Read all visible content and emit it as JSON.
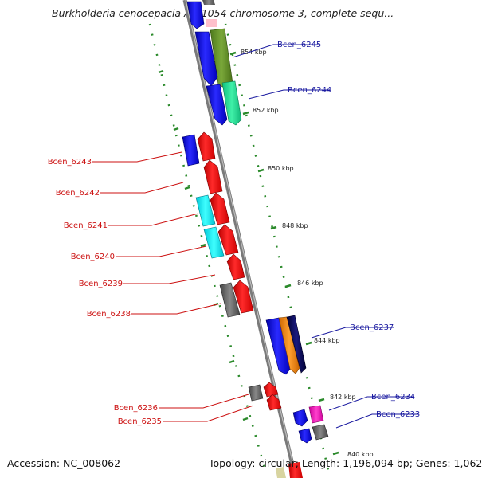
{
  "title": "Burkholderia cenocepacia AU 1054 chromosome 3, complete sequ...",
  "footer": {
    "accession": "Accession: NC_008062",
    "summary": "Topology: circular; Length: 1,196,094 bp; Genes: 1,062"
  },
  "colors": {
    "backbone": "#888888",
    "ticks": "#2b8a2b",
    "forward_label": "#1a1aa0",
    "reverse_label": "#cc1111"
  },
  "kbp_labels": [
    "854 kbp",
    "852 kbp",
    "850 kbp",
    "848 kbp",
    "846 kbp",
    "844 kbp",
    "842 kbp",
    "840 kbp"
  ],
  "gene_labels": {
    "forward": [
      "Bcen_6245",
      "Bcen_6244",
      "Bcen_6237",
      "Bcen_6234",
      "Bcen_6233"
    ],
    "reverse": [
      "Bcen_6243",
      "Bcen_6242",
      "Bcen_6241",
      "Bcen_6240",
      "Bcen_6239",
      "Bcen_6238",
      "Bcen_6236",
      "Bcen_6235"
    ]
  }
}
